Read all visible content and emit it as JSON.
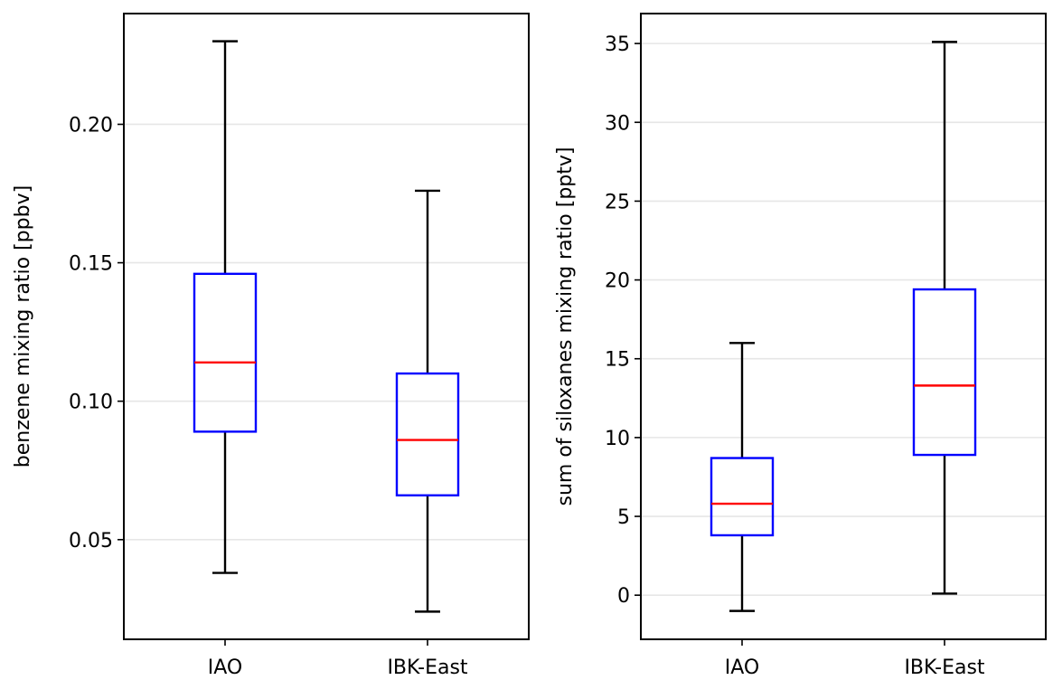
{
  "colors": {
    "box": "#0000ff",
    "median": "#ff0000",
    "whisker": "#000000",
    "grid": "#e6e6e6",
    "frame": "#000000"
  },
  "chart_data": [
    {
      "type": "box",
      "title": "",
      "xlabel": "",
      "ylabel": "benzene mixing ratio [ppbv]",
      "categories": [
        "IAO",
        "IBK-East"
      ],
      "ylim": [
        0.014,
        0.24
      ],
      "yticks": [
        0.05,
        0.1,
        0.15,
        0.2
      ],
      "ytick_labels": [
        "0.05",
        "0.10",
        "0.15",
        "0.20"
      ],
      "grid": "horizontal",
      "boxes": [
        {
          "category": "IAO",
          "whisker_low": 0.038,
          "q1": 0.089,
          "median": 0.114,
          "q3": 0.146,
          "whisker_high": 0.23
        },
        {
          "category": "IBK-East",
          "whisker_low": 0.024,
          "q1": 0.066,
          "median": 0.086,
          "q3": 0.11,
          "whisker_high": 0.176
        }
      ]
    },
    {
      "type": "box",
      "title": "",
      "xlabel": "",
      "ylabel": "sum of siloxanes mixing ratio [pptv]",
      "categories": [
        "IAO",
        "IBK-East"
      ],
      "ylim": [
        -2.8,
        36.9
      ],
      "yticks": [
        0,
        5,
        10,
        15,
        20,
        25,
        30,
        35
      ],
      "ytick_labels": [
        "0",
        "5",
        "10",
        "15",
        "20",
        "25",
        "30",
        "35"
      ],
      "grid": "horizontal",
      "boxes": [
        {
          "category": "IAO",
          "whisker_low": -1.0,
          "q1": 3.8,
          "median": 5.8,
          "q3": 8.7,
          "whisker_high": 16.0
        },
        {
          "category": "IBK-East",
          "whisker_low": 0.1,
          "q1": 8.9,
          "median": 13.3,
          "q3": 19.4,
          "whisker_high": 35.1
        }
      ]
    }
  ]
}
